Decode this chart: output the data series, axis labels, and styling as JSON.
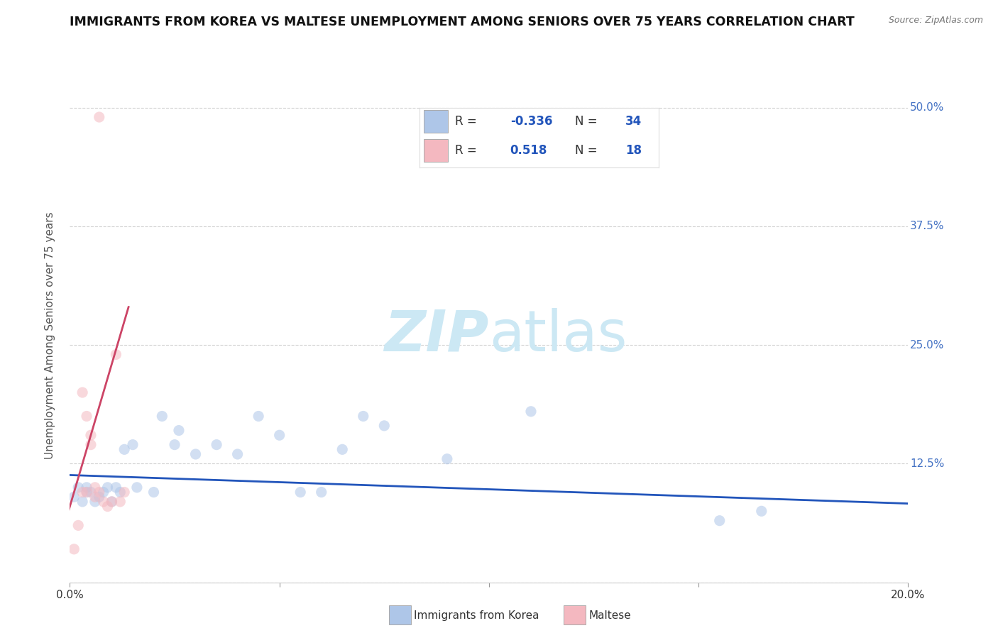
{
  "title": "IMMIGRANTS FROM KOREA VS MALTESE UNEMPLOYMENT AMONG SENIORS OVER 75 YEARS CORRELATION CHART",
  "source": "Source: ZipAtlas.com",
  "ylabel": "Unemployment Among Seniors over 75 years",
  "xlim": [
    0.0,
    0.2
  ],
  "ylim": [
    0.0,
    0.52
  ],
  "xticks": [
    0.0,
    0.05,
    0.1,
    0.15,
    0.2
  ],
  "xticklabels": [
    "0.0%",
    "",
    "",
    "",
    "20.0%"
  ],
  "yticks": [
    0.0,
    0.125,
    0.25,
    0.375,
    0.5
  ],
  "yticklabels_right": [
    "",
    "12.5%",
    "25.0%",
    "37.5%",
    "50.0%"
  ],
  "legend_entries": [
    {
      "label": "Immigrants from Korea",
      "color": "#aec6e8",
      "R": "-0.336",
      "N": "34"
    },
    {
      "label": "Maltese",
      "color": "#f4b8c0",
      "R": "0.518",
      "N": "18"
    }
  ],
  "watermark_zip": "ZIP",
  "watermark_atlas": "atlas",
  "korea_scatter_x": [
    0.001,
    0.002,
    0.003,
    0.004,
    0.004,
    0.005,
    0.006,
    0.007,
    0.008,
    0.009,
    0.01,
    0.011,
    0.012,
    0.013,
    0.015,
    0.016,
    0.02,
    0.022,
    0.025,
    0.026,
    0.03,
    0.035,
    0.04,
    0.045,
    0.05,
    0.055,
    0.06,
    0.065,
    0.07,
    0.075,
    0.09,
    0.11,
    0.155,
    0.165
  ],
  "korea_scatter_y": [
    0.09,
    0.1,
    0.085,
    0.095,
    0.1,
    0.095,
    0.085,
    0.09,
    0.095,
    0.1,
    0.085,
    0.1,
    0.095,
    0.14,
    0.145,
    0.1,
    0.095,
    0.175,
    0.145,
    0.16,
    0.135,
    0.145,
    0.135,
    0.175,
    0.155,
    0.095,
    0.095,
    0.14,
    0.175,
    0.165,
    0.13,
    0.18,
    0.065,
    0.075
  ],
  "maltese_scatter_x": [
    0.001,
    0.002,
    0.003,
    0.003,
    0.004,
    0.004,
    0.005,
    0.005,
    0.006,
    0.006,
    0.007,
    0.007,
    0.008,
    0.009,
    0.01,
    0.011,
    0.012,
    0.013
  ],
  "maltese_scatter_y": [
    0.035,
    0.06,
    0.095,
    0.2,
    0.095,
    0.175,
    0.155,
    0.145,
    0.09,
    0.1,
    0.49,
    0.095,
    0.085,
    0.08,
    0.085,
    0.24,
    0.085,
    0.095
  ],
  "korea_trend_x": [
    0.0,
    0.2
  ],
  "korea_trend_y": [
    0.113,
    0.083
  ],
  "maltese_trend_x": [
    -0.002,
    0.014
  ],
  "maltese_trend_y": [
    0.05,
    0.29
  ],
  "bg_color": "#ffffff",
  "scatter_alpha": 0.55,
  "scatter_size": 120,
  "title_fontsize": 12.5,
  "axis_label_fontsize": 11,
  "tick_fontsize": 11,
  "legend_fontsize": 12,
  "legend_R_color": "#2255bb",
  "legend_N_color": "#2255bb",
  "trend_blue_color": "#2255bb",
  "trend_pink_color": "#cc4466",
  "ytick_color": "#4472c4",
  "grid_color": "#cccccc",
  "grid_linestyle": "--",
  "watermark_color": "#cce8f4"
}
